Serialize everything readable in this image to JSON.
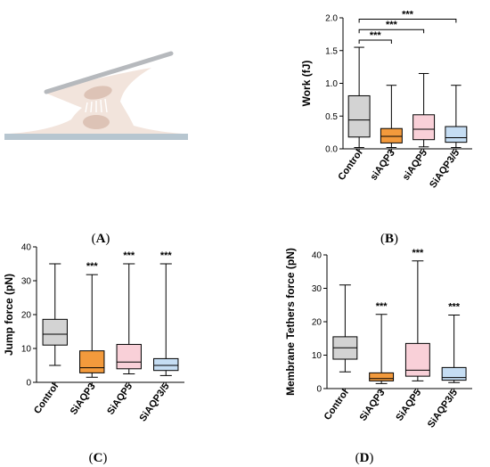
{
  "panels": {
    "A": {
      "label_open": "(",
      "letter": "A",
      "label_close": ")"
    },
    "B": {
      "label_open": "(",
      "letter": "B",
      "label_close": ")"
    },
    "C": {
      "label_open": "(",
      "letter": "C",
      "label_close": ")"
    },
    "D": {
      "label_open": "(",
      "letter": "D",
      "label_close": ")"
    }
  },
  "chart_data": [
    {
      "id": "B",
      "type": "box",
      "ylabel": "Work (fJ)",
      "ylim": [
        0,
        2.0
      ],
      "yticks": [
        "0.0",
        "0.5",
        "1.0",
        "1.5",
        "2.0"
      ],
      "ytick_values": [
        0,
        0.5,
        1.0,
        1.5,
        2.0
      ],
      "categories": [
        "Control",
        "siAQP3",
        "siAQP5",
        "SiAQP3/5"
      ],
      "colors": [
        "#d3d3d3",
        "#f39a3c",
        "#f9d0d8",
        "#c5ddf3"
      ],
      "boxes": [
        {
          "min": 0.02,
          "q1": 0.18,
          "median": 0.44,
          "q3": 0.81,
          "max": 1.55
        },
        {
          "min": 0.02,
          "q1": 0.09,
          "median": 0.19,
          "q3": 0.31,
          "max": 0.97
        },
        {
          "min": 0.03,
          "q1": 0.14,
          "median": 0.3,
          "q3": 0.52,
          "max": 1.15
        },
        {
          "min": 0.02,
          "q1": 0.1,
          "median": 0.17,
          "q3": 0.34,
          "max": 0.97
        }
      ],
      "brackets": [
        {
          "from": 0,
          "to": 1,
          "y": 1.66,
          "text": "***"
        },
        {
          "from": 0,
          "to": 2,
          "y": 1.82,
          "text": "***"
        },
        {
          "from": 0,
          "to": 3,
          "y": 1.98,
          "text": "***"
        }
      ],
      "top_stars": [
        "",
        "",
        "",
        ""
      ]
    },
    {
      "id": "C",
      "type": "box",
      "ylabel": "Jump force  (pN)",
      "ylim": [
        0,
        40
      ],
      "yticks": [
        "0",
        "10",
        "20",
        "30",
        "40"
      ],
      "ytick_values": [
        0,
        10,
        20,
        30,
        40
      ],
      "categories": [
        "Control",
        "SiAQP3",
        "SiAQP5",
        "SiAQP3/5"
      ],
      "colors": [
        "#d3d3d3",
        "#f39a3c",
        "#f9d0d8",
        "#c5ddf3"
      ],
      "boxes": [
        {
          "min": 5.0,
          "q1": 11.0,
          "median": 14.2,
          "q3": 18.6,
          "max": 35.0
        },
        {
          "min": 1.5,
          "q1": 2.8,
          "median": 4.3,
          "q3": 9.3,
          "max": 31.8
        },
        {
          "min": 2.5,
          "q1": 4.0,
          "median": 6.0,
          "q3": 11.2,
          "max": 35.0
        },
        {
          "min": 2.0,
          "q1": 3.5,
          "median": 5.0,
          "q3": 7.0,
          "max": 35.0
        }
      ],
      "brackets": [],
      "top_stars": [
        "",
        "***",
        "***",
        "***"
      ]
    },
    {
      "id": "D",
      "type": "box",
      "ylabel": "Membrane Tethers force (pN)",
      "ylim": [
        0,
        40
      ],
      "yticks": [
        "0",
        "10",
        "20",
        "30",
        "40"
      ],
      "ytick_values": [
        0,
        10,
        20,
        30,
        40
      ],
      "categories": [
        "Control",
        "SiAQP3",
        "SiAQP5",
        "SiAQP3/5"
      ],
      "colors": [
        "#d3d3d3",
        "#f39a3c",
        "#f9d0d8",
        "#c5ddf3"
      ],
      "boxes": [
        {
          "min": 5.0,
          "q1": 8.8,
          "median": 12.2,
          "q3": 15.5,
          "max": 31.0
        },
        {
          "min": 1.5,
          "q1": 2.3,
          "median": 3.0,
          "q3": 4.7,
          "max": 22.2
        },
        {
          "min": 2.3,
          "q1": 3.7,
          "median": 5.5,
          "q3": 13.5,
          "max": 38.2
        },
        {
          "min": 1.8,
          "q1": 2.5,
          "median": 3.3,
          "q3": 6.3,
          "max": 22.0
        }
      ],
      "brackets": [],
      "top_stars": [
        "",
        "***",
        "***",
        "***"
      ]
    }
  ]
}
